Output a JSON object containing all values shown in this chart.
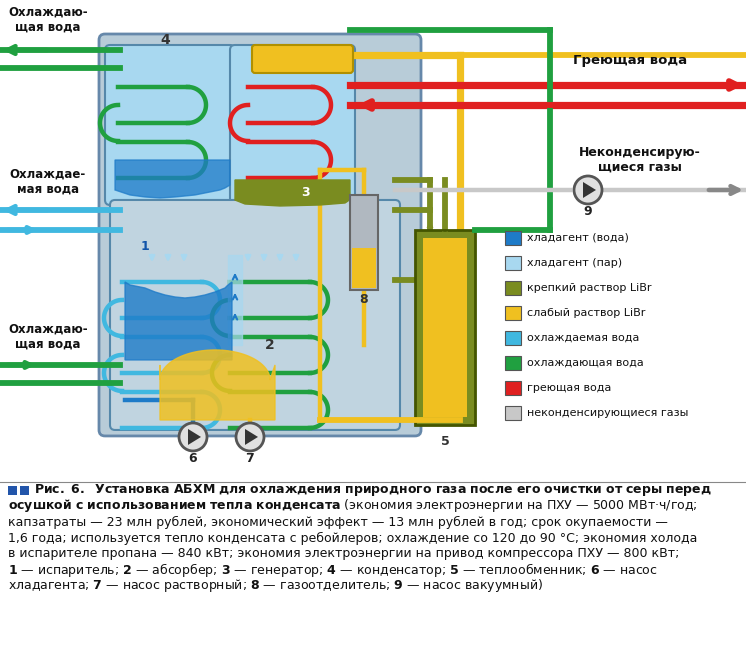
{
  "bg_color": "#dce8f0",
  "c_hladagent": "#1e7bc8",
  "c_hladagent_par": "#a8d8f0",
  "c_krepky": "#7a8c20",
  "c_slaby": "#f0c020",
  "c_ohlazhd": "#40b8e0",
  "c_ohlazhd2": "#20a040",
  "c_gret": "#e02020",
  "c_gas": "#c8c8c8",
  "legend_items": [
    {
      "color": "#1e7bc8",
      "label": "хладагент (вода)"
    },
    {
      "color": "#a8d8f0",
      "label": "хладагент (пар)"
    },
    {
      "color": "#7a8c20",
      "label": "крепкий раствор LiBr"
    },
    {
      "color": "#f0c020",
      "label": "слабый раствор LiBr"
    },
    {
      "color": "#40b8e0",
      "label": "охлаждаемая вода"
    },
    {
      "color": "#20a040",
      "label": "охлаждающая вода"
    },
    {
      "color": "#e02020",
      "label": "греющая вода"
    },
    {
      "color": "#c8c8c8",
      "label": "неконденсирующиеся газы"
    }
  ]
}
